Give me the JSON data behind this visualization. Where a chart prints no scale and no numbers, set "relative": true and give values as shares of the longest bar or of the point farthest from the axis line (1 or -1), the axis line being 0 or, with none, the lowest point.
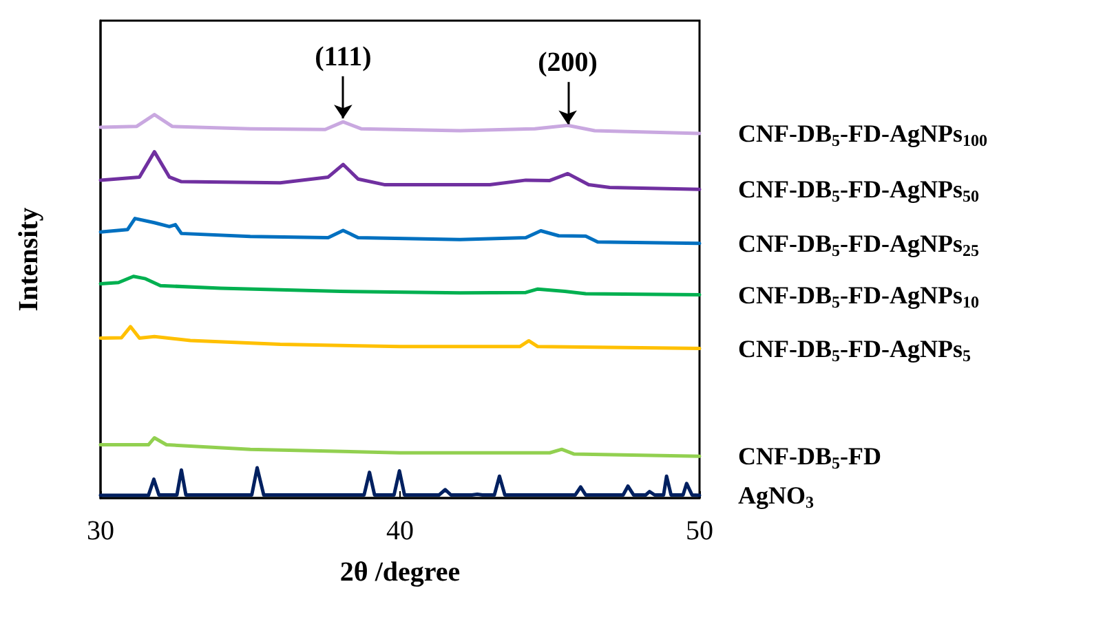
{
  "chart_data": {
    "type": "line",
    "relative": true,
    "xlabel": "2θ /degree",
    "ylabel": "Intensity",
    "xlim": [
      30,
      50
    ],
    "xticks": [
      30,
      40,
      50
    ],
    "grid": false,
    "legend": false,
    "marker": "none",
    "line_style": "solid",
    "annotations": [
      {
        "text": "(111)",
        "x": 38.1,
        "y": 0.99
      },
      {
        "text": "(200)",
        "x": 45.6,
        "y": 0.975
      }
    ],
    "series": [
      {
        "name": "CNF-DB$_{5}$-FD-AgNPs$_{100}$",
        "color": "#c9a8e0",
        "x": [
          30,
          31.2,
          31.8,
          32.4,
          35,
          37.5,
          38.1,
          38.7,
          42,
          44.5,
          45.6,
          46.5,
          50
        ],
        "values": [
          0.967,
          0.969,
          1,
          0.969,
          0.963,
          0.961,
          0.981,
          0.963,
          0.958,
          0.963,
          0.972,
          0.958,
          0.951
        ]
      },
      {
        "name": "CNF-DB$_{5}$-FD-AgNPs$_{50}$",
        "color": "#7030a0",
        "x": [
          30,
          31.3,
          31.8,
          32.3,
          32.7,
          36,
          37.6,
          38.1,
          38.6,
          39.5,
          43,
          44.2,
          45,
          45.6,
          46.3,
          47,
          50
        ],
        "values": [
          0.829,
          0.837,
          0.903,
          0.837,
          0.825,
          0.822,
          0.837,
          0.87,
          0.832,
          0.817,
          0.817,
          0.829,
          0.828,
          0.846,
          0.817,
          0.81,
          0.805
        ]
      },
      {
        "name": "CNF-DB$_{5}$-FD-AgNPs$_{25}$",
        "color": "#0070c0",
        "x": [
          30,
          30.9,
          31.15,
          31.8,
          32.3,
          32.5,
          32.7,
          35,
          37.6,
          38.1,
          38.6,
          42,
          44.2,
          44.7,
          45.3,
          46.2,
          46.6,
          50
        ],
        "values": [
          0.694,
          0.7,
          0.729,
          0.718,
          0.708,
          0.713,
          0.69,
          0.682,
          0.679,
          0.698,
          0.679,
          0.674,
          0.679,
          0.697,
          0.684,
          0.683,
          0.668,
          0.664
        ]
      },
      {
        "name": "CNF-DB$_{5}$-FD-AgNPs$_{10}$",
        "color": "#00b050",
        "x": [
          30,
          30.6,
          31.1,
          31.5,
          32,
          34,
          38,
          42,
          44.2,
          44.6,
          45.5,
          46.2,
          50
        ],
        "values": [
          0.559,
          0.562,
          0.578,
          0.572,
          0.554,
          0.547,
          0.539,
          0.535,
          0.536,
          0.545,
          0.539,
          0.533,
          0.53
        ]
      },
      {
        "name": "CNF-DB$_{5}$-FD-AgNPs$_{5}$",
        "color": "#ffc000",
        "x": [
          30,
          30.7,
          31,
          31.3,
          31.8,
          33,
          36,
          40,
          44,
          44.3,
          44.6,
          50
        ],
        "values": [
          0.417,
          0.418,
          0.447,
          0.417,
          0.421,
          0.411,
          0.401,
          0.395,
          0.395,
          0.41,
          0.395,
          0.39
        ]
      },
      {
        "name": "CNF-DB$_{5}$-FD",
        "color": "#92d050",
        "x": [
          30,
          31.6,
          31.8,
          32.2,
          35,
          40,
          45,
          45.4,
          45.8,
          50
        ],
        "values": [
          0.139,
          0.139,
          0.157,
          0.139,
          0.127,
          0.118,
          0.118,
          0.127,
          0.115,
          0.109
        ]
      },
      {
        "name": "AgNO$_{3}$",
        "color": "#002060",
        "x": [
          30,
          31.6,
          31.78,
          31.95,
          32.55,
          32.7,
          32.85,
          35.05,
          35.23,
          35.45,
          38.8,
          38.98,
          39.15,
          39.8,
          39.98,
          40.15,
          41.3,
          41.51,
          41.7,
          42.4,
          42.58,
          42.75,
          43.15,
          43.32,
          43.5,
          45.85,
          46.03,
          46.2,
          47.45,
          47.61,
          47.8,
          48.2,
          48.33,
          48.5,
          48.8,
          48.9,
          49.05,
          49.45,
          49.57,
          49.75,
          50
        ],
        "values": [
          0.007,
          0.007,
          0.049,
          0.008,
          0.008,
          0.073,
          0.008,
          0.008,
          0.079,
          0.008,
          0.008,
          0.067,
          0.008,
          0.008,
          0.071,
          0.008,
          0.008,
          0.022,
          0.008,
          0.008,
          0.01,
          0.008,
          0.008,
          0.057,
          0.008,
          0.008,
          0.029,
          0.008,
          0.008,
          0.031,
          0.008,
          0.008,
          0.017,
          0.008,
          0.008,
          0.057,
          0.008,
          0.008,
          0.038,
          0.008,
          0.007
        ]
      }
    ]
  }
}
